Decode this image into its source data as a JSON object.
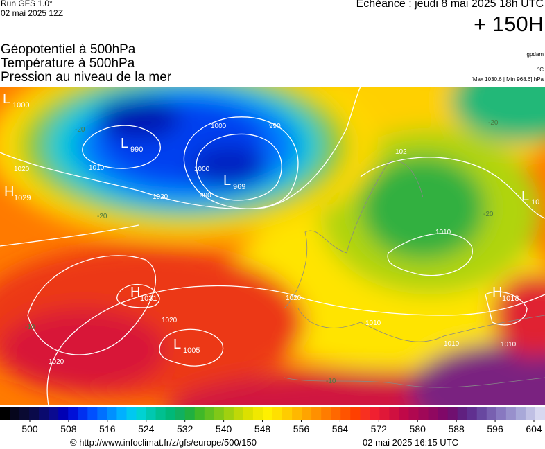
{
  "header": {
    "run": "Run GFS 1.0°",
    "run_date": "02 mai 2025 12Z",
    "valid": "Echéance : jeudi 8 mai 2025 18h UTC",
    "lead": "+ 150H",
    "titles": [
      "Géopotentiel à 500hPa",
      "Température à 500hPa",
      "Pression au niveau de la mer"
    ],
    "unit_geopotential": "gpdam",
    "unit_temperature": "°C",
    "pressure_range": "[Max 1030.6 | Min 968.6] hPa"
  },
  "centers": [
    {
      "letter": "L",
      "value": 1000
    },
    {
      "letter": "L",
      "value": 990
    },
    {
      "letter": "L",
      "value": 969
    },
    {
      "letter": "H",
      "value": 1029
    },
    {
      "letter": "H",
      "value": 1031
    },
    {
      "letter": "L",
      "value": 1005
    },
    {
      "letter": "H",
      "value": 1018
    },
    {
      "letter": "L",
      "value": 10
    }
  ],
  "isoline_labels": [
    "1020",
    "1010",
    "1020",
    "1000",
    "990",
    "990",
    "1000",
    "1020",
    "1020",
    "1020",
    "1010",
    "1010",
    "1010",
    "1010",
    "102",
    "-20",
    "-20",
    "-10",
    "-20",
    "-10",
    "-20"
  ],
  "colorbar": {
    "colors": [
      "#000000",
      "#06061c",
      "#0a0a32",
      "#0a0a4a",
      "#0a0a6e",
      "#0a0a90",
      "#0000b4",
      "#0010d8",
      "#0030f0",
      "#0050ff",
      "#0070ff",
      "#0090ff",
      "#00b0ff",
      "#00c8f0",
      "#00d2d2",
      "#00c8b0",
      "#00c090",
      "#00b878",
      "#10b060",
      "#20b040",
      "#40b828",
      "#60c020",
      "#80c818",
      "#a0d010",
      "#c0d808",
      "#dce000",
      "#f0e800",
      "#fff000",
      "#ffe000",
      "#ffcc00",
      "#ffb800",
      "#ffa400",
      "#ff9000",
      "#ff7c00",
      "#ff6800",
      "#ff5400",
      "#ff4000",
      "#f83020",
      "#f02030",
      "#e01838",
      "#d01040",
      "#c00848",
      "#b00850",
      "#a00858",
      "#900860",
      "#800868",
      "#701070",
      "#602080",
      "#603090",
      "#6848a0",
      "#7860b0",
      "#8878c0",
      "#9890cc",
      "#a8a8d8",
      "#c0c0e4",
      "#d8d8f0"
    ],
    "ticks": [
      500,
      508,
      516,
      524,
      532,
      540,
      548,
      556,
      564,
      572,
      580,
      588,
      596,
      604
    ]
  },
  "footer": {
    "source": "© http://www.infoclimat.fr/z/gfs/europe/500/150",
    "generated": "02 mai 2025 16:15 UTC"
  }
}
